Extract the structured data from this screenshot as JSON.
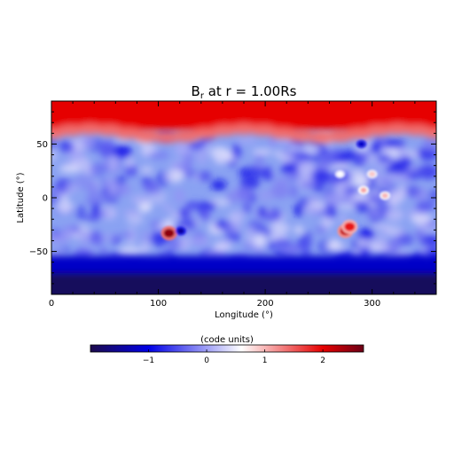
{
  "chart_data": {
    "type": "heatmap",
    "title": "B",
    "title_subscript": "r",
    "title_suffix": " at r = 1.00Rs",
    "xlabel": "Longitude (°)",
    "ylabel": "Latitude (°)",
    "xlim": [
      0,
      360
    ],
    "ylim": [
      -90,
      90
    ],
    "x_ticks": [
      0,
      100,
      200,
      300
    ],
    "x_tick_labels": [
      "0",
      "100",
      "200",
      "300"
    ],
    "y_ticks": [
      -50,
      0,
      50
    ],
    "y_tick_labels": [
      "−50",
      "0",
      "50"
    ],
    "grid": false,
    "colorbar": {
      "label": "(code units)",
      "range": [
        -2.0,
        2.7
      ],
      "ticks": [
        -1,
        0,
        1,
        2
      ],
      "tick_labels": [
        "−1",
        "0",
        "1",
        "2"
      ],
      "placement": "bottom",
      "colormap": [
        "#1c0b4c",
        "#0000e6",
        "#ffffff",
        "#e60000",
        "#6b0016"
      ]
    },
    "field": {
      "description_values": {
        "north_polar_cap": 2.0,
        "south_polar_cap": -1.9,
        "quiet_sun_background": -0.3
      },
      "north_polar_boundary_lat": 57,
      "south_polar_boundary_lat": -58,
      "active_regions": [
        {
          "lon": 110,
          "lat": -33,
          "peak": 2.5
        },
        {
          "lon": 121,
          "lat": -31,
          "peak": -1.5
        },
        {
          "lon": 275,
          "lat": -31,
          "peak": 2.2
        },
        {
          "lon": 279,
          "lat": -27,
          "peak": 1.9
        },
        {
          "lon": 292,
          "lat": 7,
          "peak": 1.1
        },
        {
          "lon": 300,
          "lat": 22,
          "peak": 0.9
        },
        {
          "lon": 312,
          "lat": 2,
          "peak": 1.0
        },
        {
          "lon": 270,
          "lat": 22,
          "peak": 0.6
        },
        {
          "lon": 290,
          "lat": 50,
          "peak": -1.2
        }
      ]
    }
  }
}
